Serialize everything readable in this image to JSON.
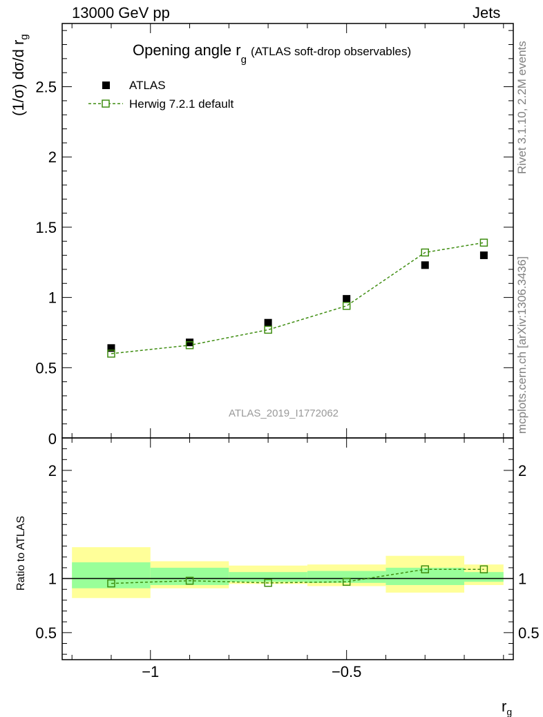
{
  "header": {
    "left": "13000 GeV pp",
    "right": "Jets"
  },
  "title": {
    "main": "Opening angle r",
    "sub": "g",
    "detail": "(ATLAS soft-drop observables)"
  },
  "ylabel": {
    "main": "(1/σ) dσ/d r",
    "sub": "g"
  },
  "ratio_ylabel": "Ratio to ATLAS",
  "xlabel": {
    "main": "r",
    "sub": "g"
  },
  "side_labels": {
    "rivet": "Rivet 3.1.10,  2.2M events",
    "mcplots": "mcplots.cern.ch [arXiv:1306.3436]"
  },
  "analysis_id": "ATLAS_2019_I1772062",
  "legend": {
    "atlas": "ATLAS",
    "herwig": "Herwig 7.2.1 default"
  },
  "colors": {
    "mc": "#3d8c0f",
    "band_outer": "#ffff99",
    "band_inner": "#99ff99",
    "data": "#000000",
    "analysis_text": "#999999"
  },
  "chart_data": [
    {
      "type": "scatter",
      "name": "main",
      "x": [
        -1.1,
        -0.9,
        -0.7,
        -0.5,
        -0.3,
        -0.15
      ],
      "xlim": [
        -1.225,
        -0.075
      ],
      "ylim": [
        0,
        2.95
      ],
      "yticks": [
        0.5,
        1,
        1.5,
        2,
        2.5
      ],
      "ytick_labels": [
        "0.5",
        "1",
        "1.5",
        "2",
        "2.5"
      ],
      "zero_label": "0",
      "series": [
        {
          "name": "ATLAS",
          "values": [
            0.64,
            0.68,
            0.82,
            0.99,
            1.23,
            1.3
          ],
          "style": "marker"
        },
        {
          "name": "Herwig 7.2.1 default",
          "values": [
            0.6,
            0.66,
            0.77,
            0.94,
            1.32,
            1.39
          ],
          "style": "dashed-line-open-square"
        }
      ]
    },
    {
      "type": "scatter",
      "name": "ratio",
      "x": [
        -1.1,
        -0.9,
        -0.7,
        -0.5,
        -0.3,
        -0.15
      ],
      "xlim": [
        -1.225,
        -0.075
      ],
      "ylim": [
        0.25,
        2.3
      ],
      "yticks": [
        0.5,
        1,
        2
      ],
      "ytick_labels": [
        "0.5",
        "1",
        "2"
      ],
      "xticks": [
        -1,
        -0.5
      ],
      "xtick_labels": [
        "−1",
        "−0.5"
      ],
      "bands": {
        "bin_edges": [
          -1.2,
          -1.0,
          -0.8,
          -0.6,
          -0.4,
          -0.2,
          -0.1
        ],
        "outer": [
          [
            0.82,
            1.29
          ],
          [
            0.91,
            1.16
          ],
          [
            0.95,
            1.12
          ],
          [
            0.93,
            1.13
          ],
          [
            0.87,
            1.21
          ],
          [
            0.94,
            1.13
          ]
        ],
        "inner": [
          [
            0.91,
            1.15
          ],
          [
            0.94,
            1.1
          ],
          [
            0.97,
            1.06
          ],
          [
            0.96,
            1.07
          ],
          [
            0.94,
            1.1
          ],
          [
            0.97,
            1.06
          ]
        ]
      },
      "series": [
        {
          "name": "Herwig 7.2.1 default / ATLAS",
          "values": [
            0.955,
            0.98,
            0.96,
            0.97,
            1.085,
            1.085
          ]
        }
      ]
    }
  ]
}
